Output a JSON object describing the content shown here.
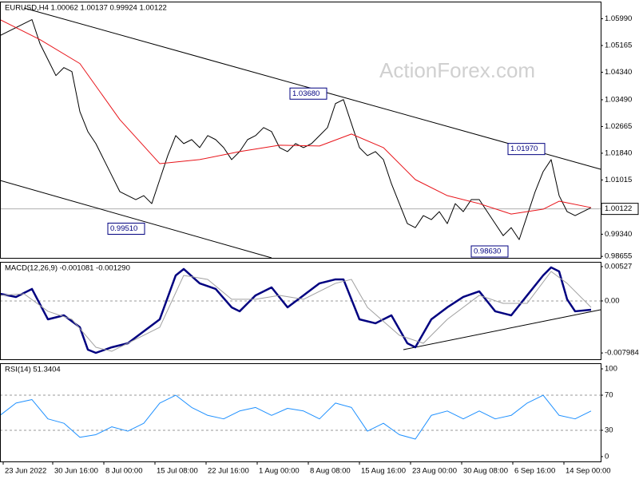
{
  "chart_data": [
    {
      "type": "line",
      "title": "EURUSD,H4  1.00062 1.00137 0.99924 1.00122",
      "watermark": "ActionForex.com",
      "xlim": [
        0,
        75.2
      ],
      "ylim": [
        0.9861,
        1.0652
      ],
      "yticks": [
        {
          "value": 1.0599,
          "label": "1.05990"
        },
        1.05165,
        {
          "value": 1.0434,
          "label": "1.04340"
        },
        {
          "value": 1.0349,
          "label": "1.03490"
        },
        1.02665,
        {
          "value": 1.0184,
          "label": "1.01840"
        },
        1.01015,
        {
          "value": 0.9934,
          "label": "0.99340"
        },
        0.98655
      ],
      "current": {
        "value": 1.00122,
        "label": "1.00122"
      },
      "series": [
        {
          "color": "#000000",
          "width": 1,
          "x": [
            0,
            1,
            2,
            3,
            4,
            5,
            6,
            7,
            8,
            9,
            10,
            11,
            12,
            13,
            14,
            15,
            16,
            17,
            18,
            19,
            20,
            21,
            22,
            23,
            24,
            25,
            26,
            27,
            28,
            29,
            30,
            31,
            32,
            33,
            34,
            35,
            36,
            37,
            38,
            39,
            40,
            41,
            42,
            43,
            44,
            45,
            46,
            47,
            48,
            49,
            50,
            51,
            52,
            53,
            54,
            55,
            56,
            57,
            58,
            59,
            60,
            61,
            62,
            63,
            64,
            65,
            66,
            67,
            68,
            69,
            70,
            71,
            72,
            73,
            74
          ],
          "values": [
            1.05471,
            1.05595,
            1.05718,
            1.05842,
            1.05965,
            1.05224,
            1.0473,
            1.04236,
            1.04483,
            1.0436,
            1.03125,
            1.02507,
            1.02137,
            1.01643,
            1.01149,
            1.00655,
            1.00531,
            1.00408,
            1.00531,
            1.00284,
            1.01025,
            1.01766,
            1.02384,
            1.02137,
            1.0226,
            1.02013,
            1.02384,
            1.0226,
            1.02013,
            1.01643,
            1.0189,
            1.0226,
            1.02384,
            1.02631,
            1.02507,
            1.02013,
            1.0189,
            1.02137,
            1.02013,
            1.02137,
            1.02384,
            1.02631,
            1.03372,
            1.03495,
            1.02754,
            1.02013,
            1.01766,
            1.0189,
            1.01643,
            1.00902,
            1.00284,
            0.99667,
            0.99543,
            0.99914,
            0.9979,
            1.00037,
            0.99667,
            1.00284,
            1.00037,
            1.00408,
            1.00408,
            1.00037,
            0.99667,
            0.99296,
            0.99543,
            0.99173,
            0.99914,
            1.00655,
            1.01272,
            1.01643,
            1.00531,
            1.00037,
            0.99914,
            1.00037,
            1.00161
          ]
        },
        {
          "color": "#e8141a",
          "width": 1,
          "x": [
            0,
            5,
            10,
            15,
            20,
            25,
            30,
            35,
            40,
            44,
            48,
            52,
            56,
            60,
            64,
            68,
            70,
            74
          ],
          "values": [
            1.05965,
            1.05348,
            1.04607,
            1.02878,
            1.01519,
            1.01643,
            1.0189,
            1.02087,
            1.02063,
            1.02433,
            1.02013,
            1.01025,
            1.00531,
            1.00284,
            0.99963,
            1.00112,
            1.00359,
            1.00161
          ]
        }
      ],
      "lines": [
        {
          "x": [
            3,
            75.2
          ],
          "values": [
            1.06323,
            1.01345
          ]
        },
        {
          "x": [
            0,
            34
          ],
          "values": [
            1.01,
            0.9861
          ]
        }
      ],
      "annotations": [
        {
          "x": 13.5,
          "value": 0.9951,
          "label": "0.99510"
        },
        {
          "x": 36.3,
          "value": 1.0368,
          "label": "1.03680"
        },
        {
          "x": 63.6,
          "value": 1.0197,
          "label": "1.01970"
        },
        {
          "x": 59,
          "value": 0.9863,
          "label": "0.98630"
        }
      ]
    },
    {
      "type": "line",
      "title": "MACD(12,26,9) -0.001081 -0.001290",
      "xlim": [
        0,
        75.2
      ],
      "ylim": [
        -0.00895,
        0.006
      ],
      "yticks": [
        0.00527,
        {
          "value": 0,
          "label": "0.00"
        },
        -0.007984
      ],
      "levels": [
        0
      ],
      "series": [
        {
          "color": "#000080",
          "width": 2.5,
          "x": [
            0,
            2,
            4,
            6,
            8,
            10,
            11,
            12,
            14,
            16,
            18,
            20,
            22,
            23,
            25,
            27,
            29,
            30,
            32,
            34,
            36,
            38,
            40,
            42,
            43,
            45,
            47,
            49,
            51,
            52,
            54,
            56,
            58,
            60,
            62,
            64,
            66,
            68,
            69,
            70,
            71,
            72,
            74
          ],
          "values": [
            0.0011,
            0.00061,
            0.00184,
            -0.00282,
            -0.00221,
            -0.00404,
            -0.00748,
            -0.00797,
            -0.00711,
            -0.0065,
            -0.00466,
            -0.00282,
            0.00392,
            0.0049,
            0.0027,
            0.00184,
            -0.00098,
            -0.00159,
            0.00086,
            0.00208,
            -0.00098,
            0.00086,
            0.0027,
            0.00331,
            0.00331,
            -0.00282,
            -0.00343,
            -0.00221,
            -0.0065,
            -0.00711,
            -0.00282,
            -0.00098,
            0.00061,
            0.00147,
            -0.00159,
            -0.00221,
            0.00086,
            0.00392,
            0.00515,
            0.00453,
            0.00025,
            -0.00159,
            -0.00135
          ]
        },
        {
          "color": "#a0a0a0",
          "width": 1,
          "x": [
            0,
            3,
            6,
            9,
            12,
            14,
            17,
            20,
            23,
            26,
            29,
            32,
            35,
            38,
            42,
            44,
            46,
            50,
            53,
            56,
            60,
            63,
            66,
            69,
            71,
            74
          ],
          "values": [
            0.00086,
            0.0011,
            -0.00159,
            -0.00282,
            -0.00711,
            -0.00772,
            -0.00588,
            -0.00404,
            0.00392,
            0.00331,
            0.00025,
            0.00025,
            0.00086,
            0.00025,
            0.0027,
            0.00331,
            -0.00098,
            -0.00527,
            -0.0065,
            -0.00282,
            0.00086,
            -0.00037,
            -0.00037,
            0.00453,
            0.0027,
            -0.00098
          ]
        }
      ],
      "lines": [
        {
          "x": [
            50.5,
            75.2
          ],
          "values": [
            -0.00748,
            -0.00135
          ]
        }
      ]
    },
    {
      "type": "line",
      "title": "RSI(14) 51.3404",
      "xlim": [
        0,
        75.2
      ],
      "ylim": [
        -5.5,
        106.4
      ],
      "yticks": [
        100,
        70,
        30,
        0
      ],
      "levels": [
        70,
        30
      ],
      "xticks": [
        {
          "value": 0.4,
          "label": "23 Jun 2022"
        },
        {
          "value": 6.6,
          "label": "30 Jun 16:00"
        },
        {
          "value": 13,
          "label": "8 Jul 00:00"
        },
        {
          "value": 19.4,
          "label": "15 Jul 08:00"
        },
        {
          "value": 25.8,
          "label": "22 Jul 16:00"
        },
        {
          "value": 32.2,
          "label": "1 Aug 00:00"
        },
        {
          "value": 38.6,
          "label": "8 Aug 08:00"
        },
        {
          "value": 45,
          "label": "15 Aug 16:00"
        },
        {
          "value": 51.4,
          "label": "23 Aug 00:00"
        },
        {
          "value": 57.8,
          "label": "30 Aug 08:00"
        },
        {
          "value": 64.2,
          "label": "6 Sep 16:00"
        },
        {
          "value": 70.6,
          "label": "14 Sep 00:00"
        }
      ],
      "series": [
        {
          "color": "#1e90ff",
          "width": 1,
          "x": [
            0,
            2,
            4,
            6,
            8,
            10,
            12,
            14,
            16,
            18,
            20,
            22,
            24,
            26,
            28,
            30,
            32,
            34,
            36,
            38,
            40,
            42,
            44,
            46,
            48,
            50,
            52,
            54,
            56,
            58,
            60,
            62,
            64,
            66,
            68,
            70,
            72,
            74
          ],
          "values": [
            47,
            61,
            65,
            43,
            38,
            22,
            25,
            34,
            29,
            38,
            61,
            70,
            56,
            47,
            43,
            52,
            56,
            47,
            55,
            52,
            43,
            61,
            56,
            29,
            38,
            25,
            20,
            47,
            52,
            43,
            52,
            43,
            47,
            61,
            70,
            47,
            43,
            52
          ]
        }
      ]
    }
  ]
}
